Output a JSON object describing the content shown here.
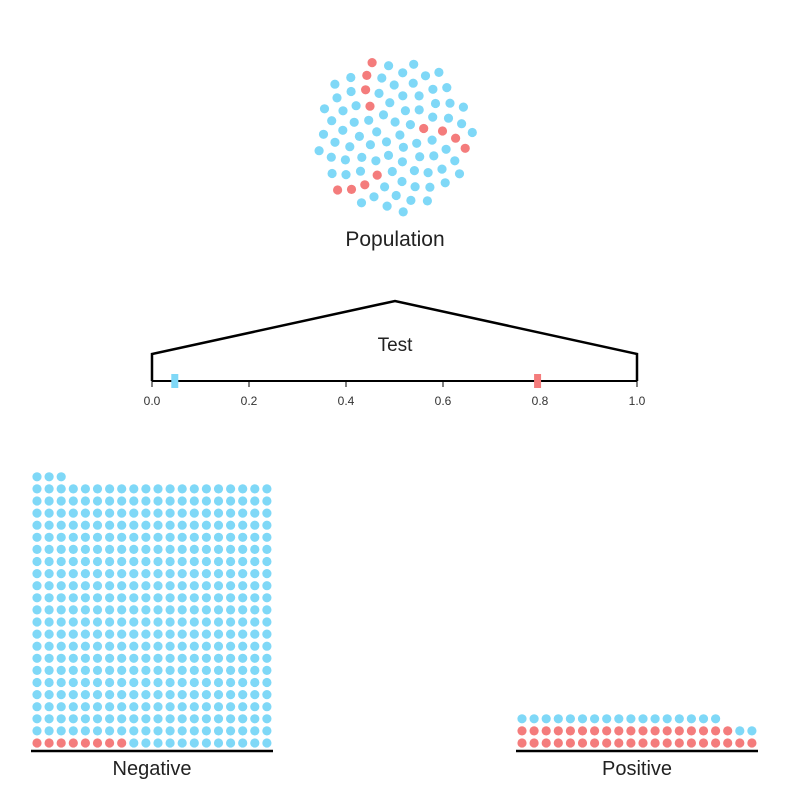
{
  "labels": {
    "population": "Population",
    "test": "Test",
    "negative": "Negative",
    "positive": "Positive"
  },
  "colors": {
    "healthy": "#7fd8f7",
    "sick": "#f47c7c",
    "outline": "#000000"
  },
  "test_axis": {
    "min": 0.0,
    "max": 1.0,
    "ticks": [
      "0.0",
      "0.2",
      "0.4",
      "0.6",
      "0.8",
      "1.0"
    ],
    "markers": [
      {
        "group": "healthy",
        "value": 0.047
      },
      {
        "group": "sick",
        "value": 0.795
      }
    ]
  },
  "chart_data": {
    "type": "table",
    "title": "",
    "population_sample": {
      "healthy": 79,
      "sick": 12
    },
    "negative_pile": {
      "columns": 20,
      "total": 443,
      "sick": 8,
      "healthy": 435
    },
    "positive_pile": {
      "columns": 20,
      "total": 57,
      "sick": 38,
      "healthy": 19
    }
  }
}
